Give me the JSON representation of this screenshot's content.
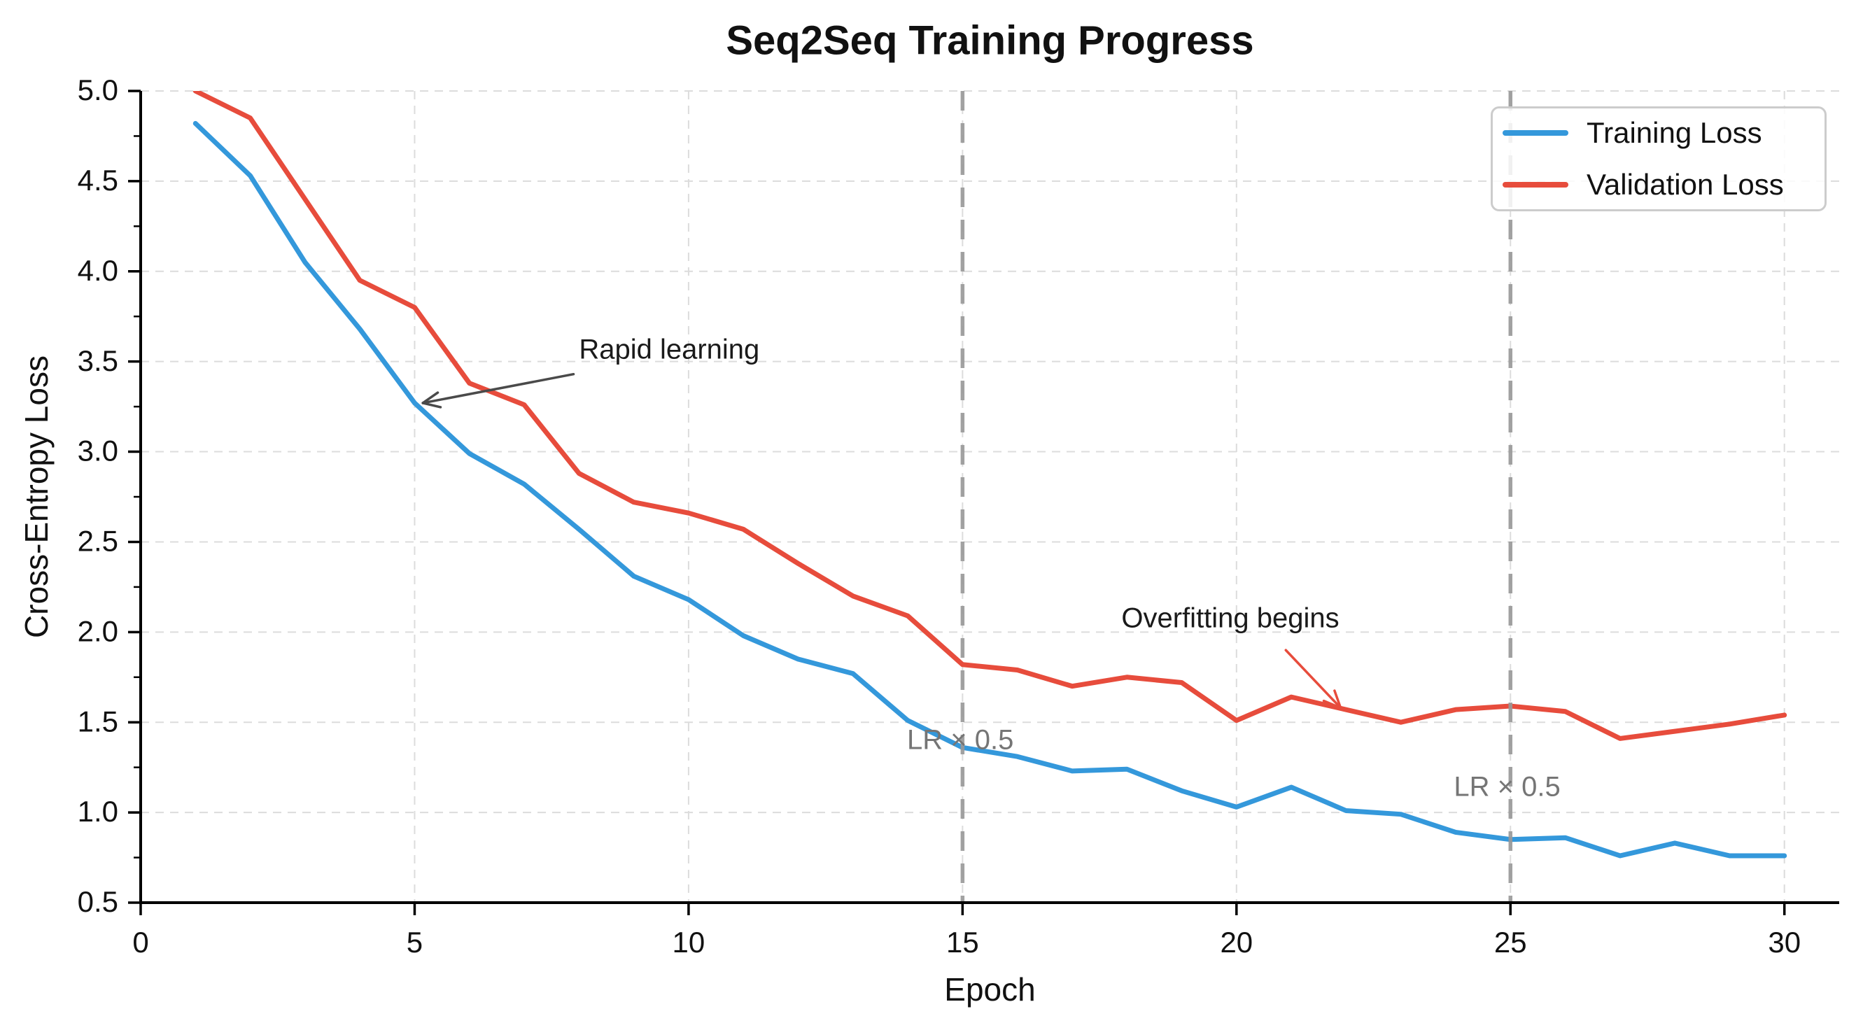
{
  "chart_data": {
    "type": "line",
    "title": "Seq2Seq Training Progress",
    "xlabel": "Epoch",
    "ylabel": "Cross-Entropy Loss",
    "x": [
      1,
      2,
      3,
      4,
      5,
      6,
      7,
      8,
      9,
      10,
      11,
      12,
      13,
      14,
      15,
      16,
      17,
      18,
      19,
      20,
      21,
      22,
      23,
      24,
      25,
      26,
      27,
      28,
      29,
      30
    ],
    "series": [
      {
        "name": "Training Loss",
        "color": "#3498db",
        "values": [
          4.82,
          4.53,
          4.05,
          3.68,
          3.27,
          2.99,
          2.82,
          2.57,
          2.31,
          2.18,
          1.98,
          1.85,
          1.77,
          1.51,
          1.36,
          1.31,
          1.23,
          1.24,
          1.12,
          1.03,
          1.14,
          1.01,
          0.99,
          0.89,
          0.85,
          0.86,
          0.76,
          0.83,
          0.76,
          0.76
        ]
      },
      {
        "name": "Validation Loss",
        "color": "#e74c3c",
        "values": [
          5.0,
          4.85,
          4.4,
          3.95,
          3.8,
          3.38,
          3.26,
          2.88,
          2.72,
          2.66,
          2.57,
          2.38,
          2.2,
          2.09,
          1.82,
          1.79,
          1.7,
          1.75,
          1.72,
          1.51,
          1.64,
          1.57,
          1.5,
          1.57,
          1.59,
          1.56,
          1.41,
          1.45,
          1.49,
          1.54
        ]
      }
    ],
    "xlim": [
      0,
      31
    ],
    "ylim": [
      0.5,
      5.0
    ],
    "x_ticks": [
      0,
      5,
      10,
      15,
      20,
      25,
      30
    ],
    "y_ticks": [
      0.5,
      1.0,
      1.5,
      2.0,
      2.5,
      3.0,
      3.5,
      4.0,
      4.5,
      5.0
    ],
    "y_minor_ticks": [
      0.75,
      1.25,
      1.75,
      2.25,
      2.75,
      3.25,
      3.75,
      4.25,
      4.75
    ],
    "grid": "dashed",
    "legend_position": "upper right",
    "vlines": [
      {
        "x": 15,
        "label": "LR × 0.5",
        "label_pos": [
          14.96,
          1.4
        ]
      },
      {
        "x": 25,
        "label": "LR × 0.5",
        "label_pos": [
          24.94,
          1.14
        ]
      }
    ],
    "annotations": [
      {
        "text": "Rapid learning",
        "text_xy": [
          8.0,
          3.56
        ],
        "arrow": {
          "from": [
            7.9,
            3.43
          ],
          "to": [
            5.15,
            3.27
          ]
        },
        "arrow_color": "#4a4a4a"
      },
      {
        "text": "Overfitting begins",
        "text_xy": [
          17.9,
          2.07
        ],
        "arrow": {
          "from": [
            20.9,
            1.9
          ],
          "to": [
            21.9,
            1.58
          ]
        },
        "arrow_color": "#e74c3c"
      }
    ],
    "style": {
      "grid_color": "#dcdcdc",
      "spine_color": "#000000",
      "vline_color": "#999999",
      "line_width": 7
    }
  }
}
